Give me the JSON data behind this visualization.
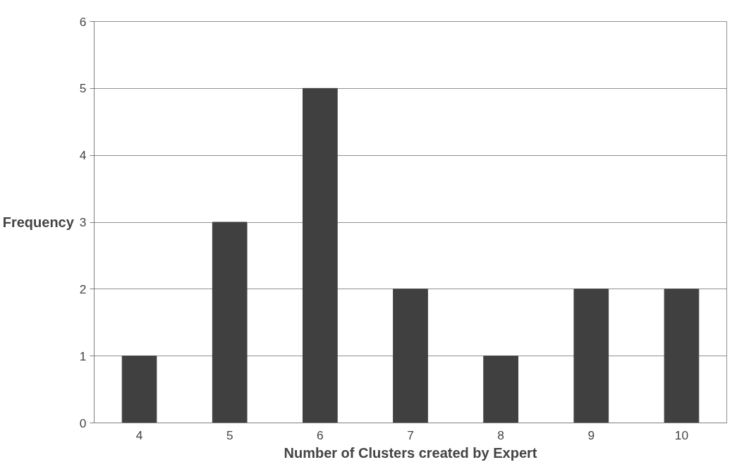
{
  "chart_data": {
    "type": "bar",
    "xlabel": "Number of Clusters created by Expert",
    "ylabel": "Frequency",
    "categories": [
      "4",
      "5",
      "6",
      "7",
      "8",
      "9",
      "10"
    ],
    "values": [
      1,
      3,
      5,
      2,
      1,
      2,
      2
    ],
    "color": "#404040",
    "ylim": [
      0,
      6
    ],
    "yticks": [
      0,
      1,
      2,
      3,
      4,
      5,
      6
    ],
    "grid": "y"
  }
}
